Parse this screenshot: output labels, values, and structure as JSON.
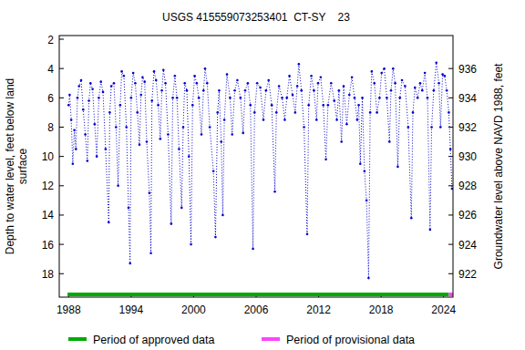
{
  "chart_data": {
    "type": "line",
    "title": "USGS 415559073253401  CT-SY    23",
    "ylabel": [
      "Depth to water level, feet below land",
      "surface"
    ],
    "y2label": "Groundwater level above NAVD 1988, feet",
    "xlim": [
      1987.1,
      2024.9
    ],
    "xticks": [
      1988,
      1994,
      2000,
      2006,
      2012,
      2018,
      2024
    ],
    "ylim": [
      19.6,
      1.75
    ],
    "yticks": [
      2,
      4,
      6,
      8,
      10,
      12,
      14,
      16,
      18
    ],
    "y2lim": [
      920.4,
      938.25
    ],
    "y2ticks": [
      922,
      924,
      926,
      928,
      930,
      932,
      934,
      936
    ],
    "grid": false,
    "legend": "bottom",
    "x": [
      1988.0,
      1988.1,
      1988.25,
      1988.4,
      1988.55,
      1988.7,
      1988.85,
      1989.0,
      1989.2,
      1989.4,
      1989.6,
      1989.8,
      1989.95,
      1990.1,
      1990.3,
      1990.5,
      1990.7,
      1990.9,
      1991.1,
      1991.3,
      1991.55,
      1991.85,
      1991.95,
      1992.1,
      1992.35,
      1992.55,
      1992.75,
      1992.95,
      1993.1,
      1993.3,
      1993.55,
      1993.75,
      1993.9,
      1994.0,
      1994.2,
      1994.4,
      1994.6,
      1994.8,
      1994.95,
      1995.1,
      1995.3,
      1995.5,
      1995.75,
      1995.9,
      1996.0,
      1996.2,
      1996.4,
      1996.6,
      1996.8,
      1996.95,
      1997.1,
      1997.3,
      1997.55,
      1997.85,
      1998.0,
      1998.2,
      1998.4,
      1998.6,
      1998.85,
      1999.0,
      1999.15,
      1999.35,
      1999.55,
      1999.75,
      1999.9,
      2000.1,
      2000.3,
      2000.5,
      2000.75,
      2000.95,
      2001.1,
      2001.3,
      2001.55,
      2001.9,
      2002.1,
      2002.3,
      2002.45,
      2002.65,
      2002.8,
      2002.95,
      2003.2,
      2003.5,
      2003.7,
      2003.95,
      2004.2,
      2004.5,
      2004.75,
      2004.95,
      2005.2,
      2005.45,
      2005.7,
      2005.85,
      2006.1,
      2006.4,
      2006.7,
      2006.95,
      2007.2,
      2007.5,
      2007.8,
      2007.95,
      2008.2,
      2008.5,
      2008.75,
      2008.95,
      2009.2,
      2009.5,
      2009.75,
      2009.95,
      2010.1,
      2010.35,
      2010.6,
      2010.9,
      2011.05,
      2011.3,
      2011.55,
      2011.8,
      2011.95,
      2012.2,
      2012.45,
      2012.7,
      2012.9,
      2013.2,
      2013.5,
      2013.75,
      2013.95,
      2014.2,
      2014.4,
      2014.7,
      2014.95,
      2015.2,
      2015.45,
      2015.7,
      2015.85,
      2016.0,
      2016.2,
      2016.4,
      2016.6,
      2016.8,
      2016.95,
      2017.1,
      2017.35,
      2017.6,
      2017.85,
      2018.05,
      2018.3,
      2018.55,
      2018.8,
      2018.95,
      2019.15,
      2019.35,
      2019.6,
      2019.8,
      2020.0,
      2020.3,
      2020.6,
      2020.9,
      2021.05,
      2021.25,
      2021.5,
      2021.75,
      2021.95,
      2022.2,
      2022.45,
      2022.7,
      2022.85,
      2023.05,
      2023.3,
      2023.55,
      2023.7,
      2023.9,
      2024.1,
      2024.3,
      2024.5,
      2024.65,
      2024.8
    ],
    "series": [
      {
        "name": "Depth to water level",
        "color": "#0000cc",
        "marker": "point",
        "line_style": "dotted",
        "values": [
          6.5,
          5.8,
          7.5,
          10.5,
          8.2,
          9.5,
          6.0,
          5.2,
          4.8,
          6.8,
          8.5,
          10.3,
          6.2,
          5.0,
          5.4,
          7.8,
          10.0,
          6.0,
          4.9,
          5.6,
          9.5,
          14.5,
          7.0,
          5.2,
          5.0,
          8.0,
          12.0,
          6.5,
          4.2,
          4.5,
          8.0,
          13.5,
          17.3,
          6.0,
          4.3,
          5.0,
          7.0,
          9.2,
          5.8,
          4.6,
          4.9,
          9.0,
          12.5,
          16.6,
          6.2,
          4.2,
          4.8,
          6.5,
          8.8,
          5.5,
          4.1,
          5.0,
          8.5,
          14.6,
          6.0,
          4.5,
          6.0,
          9.5,
          13.5,
          8.0,
          5.0,
          5.5,
          10.0,
          16.0,
          6.5,
          4.5,
          5.0,
          6.0,
          8.5,
          5.5,
          4.0,
          5.0,
          8.0,
          11.0,
          15.5,
          7.0,
          5.5,
          9.0,
          14.0,
          7.5,
          4.4,
          6.0,
          8.5,
          5.5,
          4.8,
          6.0,
          8.4,
          5.5,
          5.0,
          6.5,
          16.3,
          7.0,
          5.0,
          5.3,
          7.5,
          5.5,
          4.8,
          6.5,
          12.4,
          7.0,
          5.2,
          6.0,
          7.5,
          6.0,
          4.5,
          5.8,
          7.0,
          5.2,
          3.7,
          5.5,
          8.0,
          15.3,
          6.5,
          4.5,
          5.5,
          7.5,
          5.0,
          4.6,
          6.5,
          10.2,
          6.5,
          5.0,
          6.2,
          7.5,
          5.5,
          9.0,
          5.2,
          7.8,
          5.8,
          4.6,
          6.0,
          7.5,
          6.5,
          10.5,
          6.0,
          11.0,
          13.0,
          18.3,
          7.0,
          4.2,
          5.0,
          7.0,
          6.0,
          4.3,
          4.0,
          6.0,
          9.0,
          5.5,
          4.0,
          5.0,
          10.7,
          6.0,
          4.8,
          5.2,
          8.0,
          14.2,
          7.0,
          5.3,
          6.0,
          5.0,
          5.5,
          4.3,
          6.0,
          15.0,
          8.0,
          5.5,
          3.6,
          5.0,
          8.0,
          4.4,
          4.5,
          5.5,
          7.0,
          9.5,
          12.2
        ]
      }
    ],
    "periods": [
      {
        "name": "Period of approved data",
        "color": "#00aa00",
        "start": 1987.9,
        "end": 2024.5
      },
      {
        "name": "Period of provisional data",
        "color": "#ff44ff",
        "start": 2024.5,
        "end": 2024.9
      }
    ]
  }
}
